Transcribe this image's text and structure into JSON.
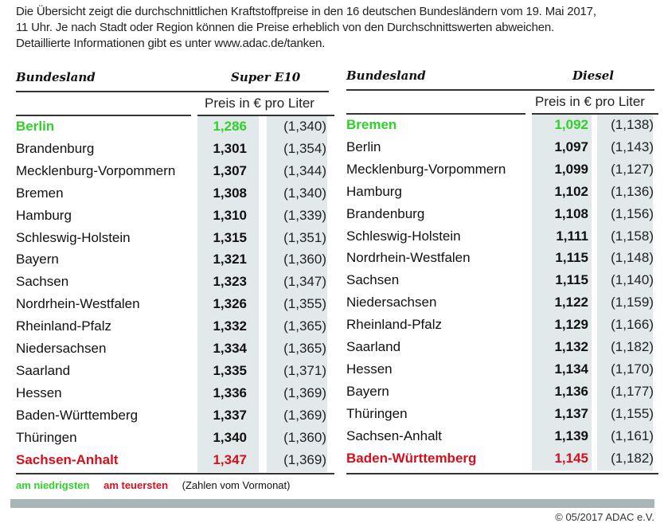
{
  "intro": {
    "lines": [
      "Die Übersicht zeigt die durchschnittlichen Kraftstoffpreise in den 16 deutschen Bundesländern vom 19. Mai 2017,",
      "11 Uhr. Je nach Stadt oder Region können die Preise erheblich von den Durchschnittswerten abweichen.",
      "Detaillierte Informationen gibt es unter www.adac.de/tanken."
    ]
  },
  "colors": {
    "lowest": "#2fd12a",
    "highest": "#d5101c",
    "shade": "#e2e9ea",
    "bar": "#a9b5b6"
  },
  "super_e10": {
    "col_state": "Bundesland",
    "col_fuel": "Super E10",
    "subheader": "Preis in € pro Liter",
    "rows": [
      {
        "state": "Berlin",
        "price": "1,286",
        "prev": "(1,340)",
        "mark": "green"
      },
      {
        "state": "Brandenburg",
        "price": "1,301",
        "prev": "(1,354)",
        "mark": ""
      },
      {
        "state": "Mecklenburg-Vorpommern",
        "price": "1,307",
        "prev": "(1,344)",
        "mark": ""
      },
      {
        "state": "Bremen",
        "price": "1,308",
        "prev": "(1,340)",
        "mark": ""
      },
      {
        "state": "Hamburg",
        "price": "1,310",
        "prev": "(1,339)",
        "mark": ""
      },
      {
        "state": "Schleswig-Holstein",
        "price": "1,315",
        "prev": "(1,351)",
        "mark": ""
      },
      {
        "state": "Bayern",
        "price": "1,321",
        "prev": "(1,360)",
        "mark": ""
      },
      {
        "state": "Sachsen",
        "price": "1,323",
        "prev": "(1,347)",
        "mark": ""
      },
      {
        "state": "Nordrhein-Westfalen",
        "price": "1,326",
        "prev": "(1,355)",
        "mark": ""
      },
      {
        "state": "Rheinland-Pfalz",
        "price": "1,332",
        "prev": "(1,365)",
        "mark": ""
      },
      {
        "state": "Niedersachsen",
        "price": "1,334",
        "prev": "(1,365)",
        "mark": ""
      },
      {
        "state": "Saarland",
        "price": "1,335",
        "prev": "(1,371)",
        "mark": ""
      },
      {
        "state": "Hessen",
        "price": "1,336",
        "prev": "(1,369)",
        "mark": ""
      },
      {
        "state": "Baden-Württemberg",
        "price": "1,337",
        "prev": "(1,369)",
        "mark": ""
      },
      {
        "state": "Thüringen",
        "price": "1,340",
        "prev": "(1,360)",
        "mark": ""
      },
      {
        "state": "Sachsen-Anhalt",
        "price": "1,347",
        "prev": "(1,369)",
        "mark": "red"
      }
    ]
  },
  "diesel": {
    "col_state": "Bundesland",
    "col_fuel": "Diesel",
    "subheader": "Preis in € pro Liter",
    "rows": [
      {
        "state": "Bremen",
        "price": "1,092",
        "prev": "(1,138)",
        "mark": "green"
      },
      {
        "state": "Berlin",
        "price": "1,097",
        "prev": "(1,143)",
        "mark": ""
      },
      {
        "state": "Mecklenburg-Vorpommern",
        "price": "1,099",
        "prev": "(1,127)",
        "mark": ""
      },
      {
        "state": "Hamburg",
        "price": "1,102",
        "prev": "(1,136)",
        "mark": ""
      },
      {
        "state": "Brandenburg",
        "price": "1,108",
        "prev": "(1,156)",
        "mark": ""
      },
      {
        "state": "Schleswig-Holstein",
        "price": "1,111",
        "prev": "(1,158)",
        "mark": ""
      },
      {
        "state": "Nordrhein-Westfalen",
        "price": "1,115",
        "prev": "(1,148)",
        "mark": ""
      },
      {
        "state": "Sachsen",
        "price": "1,115",
        "prev": "(1,140)",
        "mark": ""
      },
      {
        "state": "Niedersachsen",
        "price": "1,122",
        "prev": "(1,159)",
        "mark": ""
      },
      {
        "state": "Rheinland-Pfalz",
        "price": "1,129",
        "prev": "(1,166)",
        "mark": ""
      },
      {
        "state": "Saarland",
        "price": "1,132",
        "prev": "(1,182)",
        "mark": ""
      },
      {
        "state": "Hessen",
        "price": "1,134",
        "prev": "(1,170)",
        "mark": ""
      },
      {
        "state": "Bayern",
        "price": "1,136",
        "prev": "(1,177)",
        "mark": ""
      },
      {
        "state": "Thüringen",
        "price": "1,137",
        "prev": "(1,155)",
        "mark": ""
      },
      {
        "state": "Sachsen-Anhalt",
        "price": "1,139",
        "prev": "(1,161)",
        "mark": ""
      },
      {
        "state": "Baden-Württemberg",
        "price": "1,145",
        "prev": "(1,182)",
        "mark": "red"
      }
    ]
  },
  "legend": {
    "lowest": "am niedrigsten",
    "highest": "am teuersten",
    "note": "(Zahlen vom Vormonat)"
  },
  "footer": {
    "copyright": "© 05/2017 ADAC e.V."
  }
}
